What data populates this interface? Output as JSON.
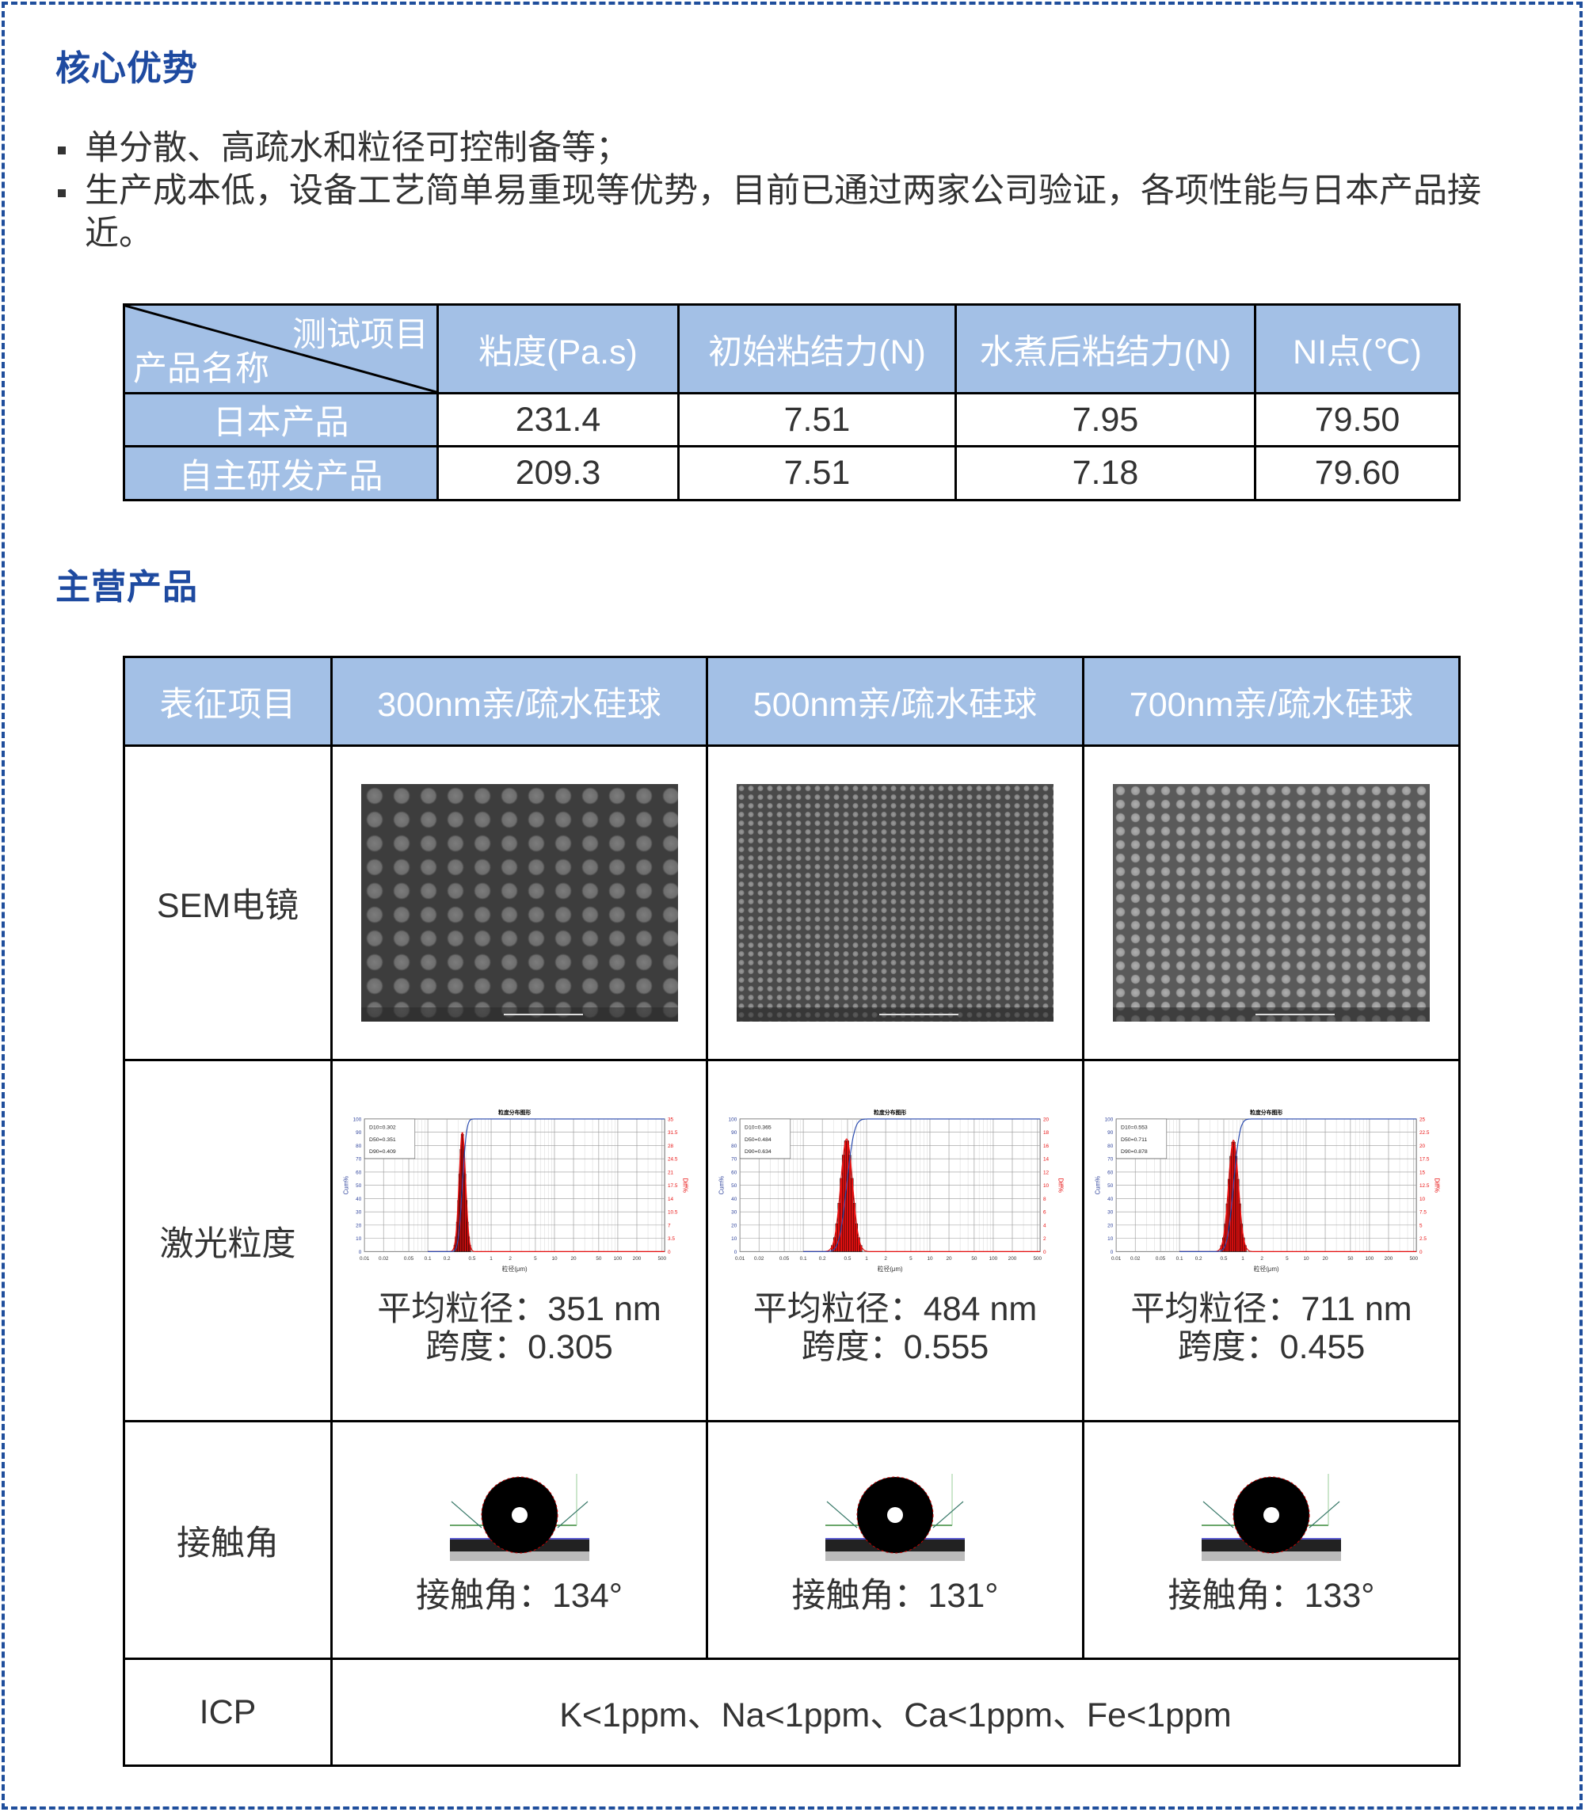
{
  "sections": {
    "advantages_title": "核心优势",
    "products_title": "主营产品"
  },
  "bullets": [
    "单分散、高疏水和粒径可控制备等；",
    "生产成本低，设备工艺简单易重现等优势，目前已通过两家公司验证，各项性能与日本产品接近。"
  ],
  "compare_table": {
    "corner_top": "测试项目",
    "corner_bottom": "产品名称",
    "headers": [
      "粘度(Pa.s)",
      "初始粘结力(N)",
      "水煮后粘结力(N)",
      "NI点(℃)"
    ],
    "rows": [
      {
        "name": "日本产品",
        "values": [
          "231.4",
          "7.51",
          "7.95",
          "79.50"
        ]
      },
      {
        "name": "自主研发产品",
        "values": [
          "209.3",
          "7.51",
          "7.18",
          "79.60"
        ]
      }
    ]
  },
  "product_table": {
    "headers": [
      "表征项目",
      "300nm亲/疏水硅球",
      "500nm亲/疏水硅球",
      "700nm亲/疏水硅球"
    ],
    "row_labels": [
      "SEM电镜",
      "激光粒度",
      "接触角",
      "ICP"
    ],
    "sizes": [
      {
        "avg": "平均粒径：351 nm",
        "span": "跨度：0.305"
      },
      {
        "avg": "平均粒径：484 nm",
        "span": "跨度：0.555"
      },
      {
        "avg": "平均粒径：711 nm",
        "span": "跨度：0.455"
      }
    ],
    "contact": [
      "接触角：134°",
      "接触角：131°",
      "接触角：133°"
    ],
    "icp": "K<1ppm、Na<1ppm、Ca<1ppm、Fe<1ppm"
  },
  "chart_data": [
    {
      "type": "bar",
      "title": "粒度分布图形",
      "xlabel": "粒径(μm)",
      "ylabel": "Cum%",
      "y2label": "Diff%",
      "x_scale": "log",
      "xlim": [
        0.01,
        550
      ],
      "x_ticks": [
        "0.01",
        "0.02",
        "0.05",
        "0.1",
        "0.2",
        "0.5",
        "1",
        "2",
        "5",
        "10",
        "20",
        "50",
        "100",
        "200",
        "500"
      ],
      "ylim": [
        0,
        100
      ],
      "y_ticks": [
        "0",
        "10",
        "20",
        "30",
        "40",
        "50",
        "60",
        "70",
        "80",
        "90",
        "100"
      ],
      "y2lim": [
        0,
        35
      ],
      "y2_ticks": [
        "0",
        "3.5",
        "7",
        "10.5",
        "14",
        "17.5",
        "21",
        "24.5",
        "28",
        "31.5",
        "35"
      ],
      "legend": [
        "D10=0.302",
        "D50=0.351",
        "D90=0.409"
      ],
      "D10": 0.302,
      "D50": 0.351,
      "D90": 0.409,
      "peak_diff": 31.5,
      "cum_color": "#2a4bb0",
      "diff_color": "#e81010",
      "grid": true
    },
    {
      "type": "bar",
      "title": "粒度分布图形",
      "xlabel": "粒径(μm)",
      "ylabel": "Cum%",
      "y2label": "Diff%",
      "x_scale": "log",
      "xlim": [
        0.01,
        550
      ],
      "x_ticks": [
        "0.01",
        "0.02",
        "0.05",
        "0.1",
        "0.2",
        "0.5",
        "1",
        "2",
        "5",
        "10",
        "20",
        "50",
        "100",
        "200",
        "500"
      ],
      "ylim": [
        0,
        100
      ],
      "y_ticks": [
        "0",
        "10",
        "20",
        "30",
        "40",
        "50",
        "60",
        "70",
        "80",
        "90",
        "100"
      ],
      "y2lim": [
        0,
        20
      ],
      "y2_ticks": [
        "0",
        "2",
        "4",
        "6",
        "8",
        "10",
        "12",
        "14",
        "16",
        "18",
        "20"
      ],
      "legend": [
        "D10=0.365",
        "D50=0.484",
        "D90=0.634"
      ],
      "D10": 0.365,
      "D50": 0.484,
      "D90": 0.634,
      "peak_diff": 17,
      "cum_color": "#2a4bb0",
      "diff_color": "#e81010",
      "grid": true
    },
    {
      "type": "bar",
      "title": "粒度分布图形",
      "xlabel": "粒径(μm)",
      "ylabel": "Cum%",
      "y2label": "Diff%",
      "x_scale": "log",
      "xlim": [
        0.01,
        550
      ],
      "x_ticks": [
        "0.01",
        "0.02",
        "0.05",
        "0.1",
        "0.2",
        "0.5",
        "1",
        "2",
        "5",
        "10",
        "20",
        "50",
        "100",
        "200",
        "500"
      ],
      "ylim": [
        0,
        100
      ],
      "y_ticks": [
        "0",
        "10",
        "20",
        "30",
        "40",
        "50",
        "60",
        "70",
        "80",
        "90",
        "100"
      ],
      "y2lim": [
        0,
        25
      ],
      "y2_ticks": [
        "0",
        "2.5",
        "5",
        "7.5",
        "10",
        "12.5",
        "15",
        "17.5",
        "20",
        "22.5",
        "25"
      ],
      "legend": [
        "D10=0.553",
        "D50=0.711",
        "D90=0.878"
      ],
      "D10": 0.553,
      "D50": 0.711,
      "D90": 0.878,
      "peak_diff": 21,
      "cum_color": "#2a4bb0",
      "diff_color": "#e81010",
      "grid": true
    }
  ],
  "colors": {
    "accent": "#1e4aa0",
    "header_bg": "#a3c0e6",
    "border_dash": "#1f4e9c"
  }
}
